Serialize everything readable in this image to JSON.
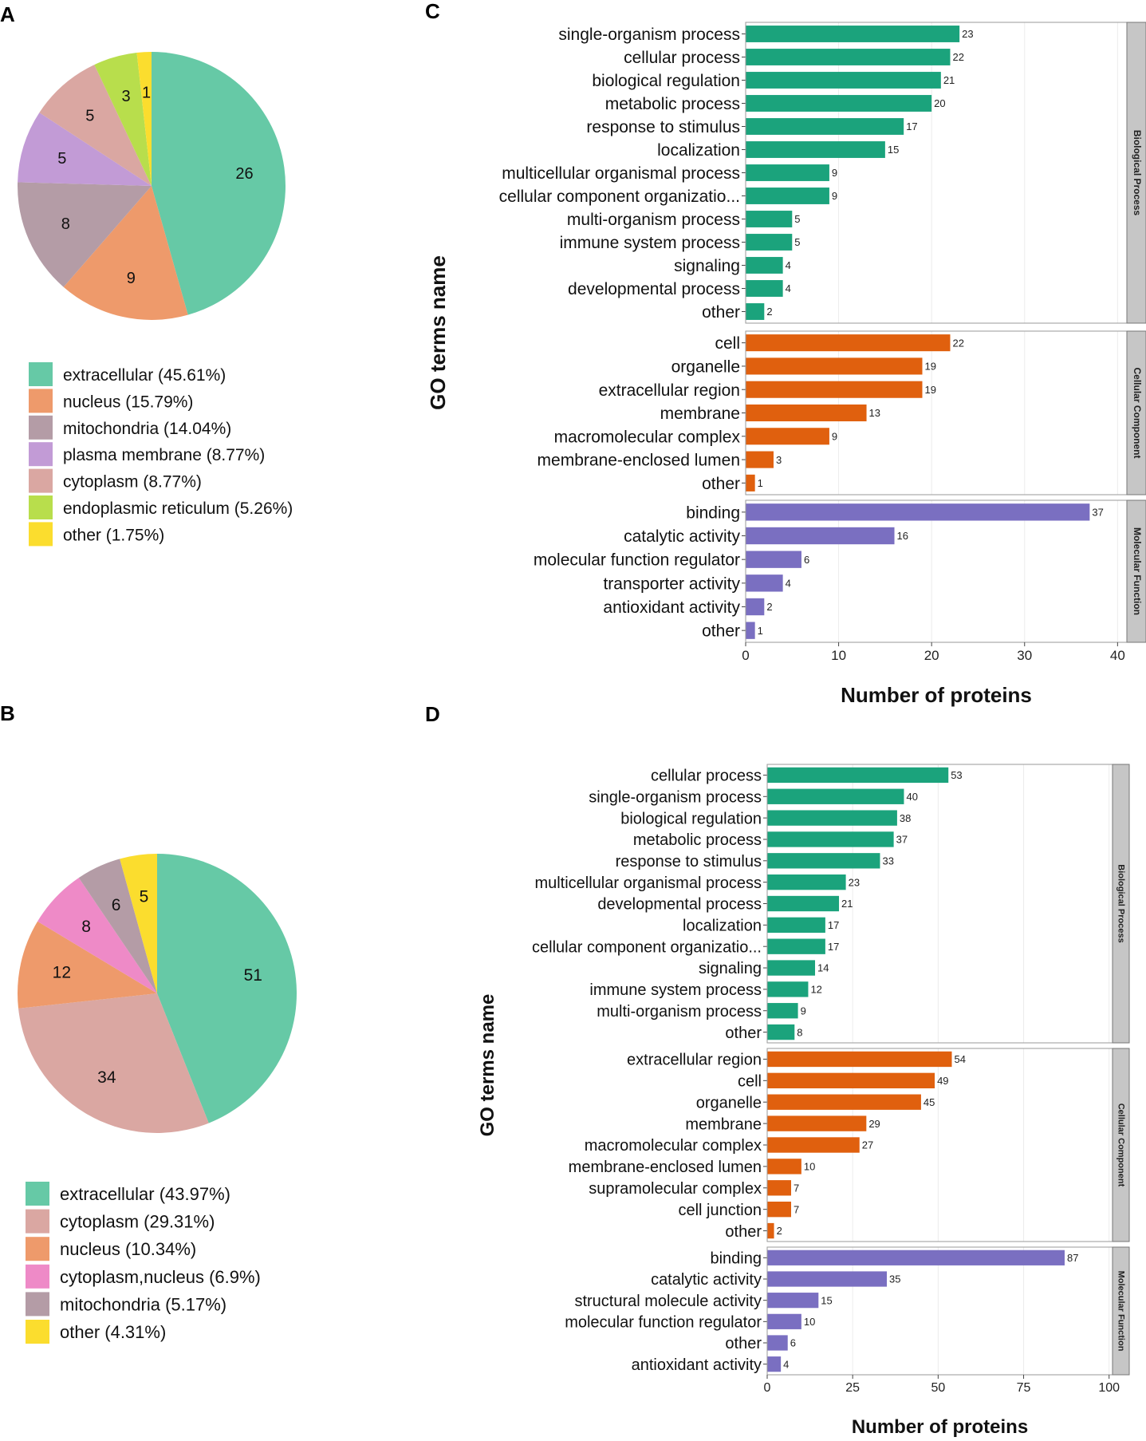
{
  "panel_letters": [
    "A",
    "B",
    "C",
    "D"
  ],
  "colors": {
    "bp": "#1ba37c",
    "cc": "#e0600e",
    "mf": "#7a6fc1",
    "strip": "#c6c6c6",
    "grid": "#ececec"
  },
  "chart_data": [
    {
      "id": "A",
      "type": "pie",
      "slices": [
        {
          "value": 26,
          "label": "extracellular (45.61%)",
          "color": "#66c9a6"
        },
        {
          "value": 9,
          "label": "nucleus (15.79%)",
          "color": "#ee9a6b"
        },
        {
          "value": 8,
          "label": "mitochondria (14.04%)",
          "color": "#b49ca6"
        },
        {
          "value": 5,
          "label": "plasma membrane (8.77%)",
          "color": "#c29bd6"
        },
        {
          "value": 5,
          "label": "cytoplasm (8.77%)",
          "color": "#daa7a2"
        },
        {
          "value": 3,
          "label": "endoplasmic reticulum (5.26%)",
          "color": "#b8de4c"
        },
        {
          "value": 1,
          "label": "other (1.75%)",
          "color": "#fbdd2e"
        }
      ]
    },
    {
      "id": "B",
      "type": "pie",
      "slices": [
        {
          "value": 51,
          "label": "extracellular (43.97%)",
          "color": "#66c9a6"
        },
        {
          "value": 34,
          "label": "cytoplasm (29.31%)",
          "color": "#daa7a2"
        },
        {
          "value": 12,
          "label": "nucleus (10.34%)",
          "color": "#ee9a6b"
        },
        {
          "value": 8,
          "label": "cytoplasm,nucleus (6.9%)",
          "color": "#ee8ac7"
        },
        {
          "value": 6,
          "label": "mitochondria (5.17%)",
          "color": "#b49ca6"
        },
        {
          "value": 5,
          "label": "other (4.31%)",
          "color": "#fbdd2e"
        }
      ]
    },
    {
      "id": "C",
      "type": "bar",
      "orientation": "horizontal",
      "xlabel": "Number of proteins",
      "ylabel": "GO terms name",
      "xlim": [
        0,
        41
      ],
      "xticks": [
        0,
        10,
        20,
        30,
        40
      ],
      "groups": [
        {
          "name": "Biological Process",
          "color_key": "bp",
          "categories": [
            "single-organism process",
            "cellular process",
            "biological regulation",
            "metabolic process",
            "response to stimulus",
            "localization",
            "multicellular organismal process",
            "cellular component organizatio...",
            "multi-organism process",
            "immune system process",
            "signaling",
            "developmental process",
            "other"
          ],
          "values": [
            23,
            22,
            21,
            20,
            17,
            15,
            9,
            9,
            5,
            5,
            4,
            4,
            2
          ]
        },
        {
          "name": "Cellular Component",
          "color_key": "cc",
          "categories": [
            "cell",
            "organelle",
            "extracellular region",
            "membrane",
            "macromolecular complex",
            "membrane-enclosed lumen",
            "other"
          ],
          "values": [
            22,
            19,
            19,
            13,
            9,
            3,
            1
          ]
        },
        {
          "name": "Molecular Function",
          "color_key": "mf",
          "categories": [
            "binding",
            "catalytic activity",
            "molecular function regulator",
            "transporter activity",
            "antioxidant activity",
            "other"
          ],
          "values": [
            37,
            16,
            6,
            4,
            2,
            1
          ]
        }
      ]
    },
    {
      "id": "D",
      "type": "bar",
      "orientation": "horizontal",
      "xlabel": "Number of proteins",
      "ylabel": "GO terms name",
      "xlim": [
        0,
        101
      ],
      "xticks": [
        0,
        25,
        50,
        75,
        100
      ],
      "groups": [
        {
          "name": "Biological Process",
          "color_key": "bp",
          "categories": [
            "cellular process",
            "single-organism process",
            "biological regulation",
            "metabolic process",
            "response to stimulus",
            "multicellular organismal process",
            "developmental process",
            "localization",
            "cellular component organizatio...",
            "signaling",
            "immune system process",
            "multi-organism process",
            "other"
          ],
          "values": [
            53,
            40,
            38,
            37,
            33,
            23,
            21,
            17,
            17,
            14,
            12,
            9,
            8
          ]
        },
        {
          "name": "Cellular Component",
          "color_key": "cc",
          "categories": [
            "extracellular region",
            "cell",
            "organelle",
            "membrane",
            "macromolecular complex",
            "membrane-enclosed lumen",
            "supramolecular complex",
            "cell junction",
            "other"
          ],
          "values": [
            54,
            49,
            45,
            29,
            27,
            10,
            7,
            7,
            2
          ]
        },
        {
          "name": "Molecular Function",
          "color_key": "mf",
          "categories": [
            "binding",
            "catalytic activity",
            "structural molecule activity",
            "molecular function regulator",
            "other",
            "antioxidant activity"
          ],
          "values": [
            87,
            35,
            15,
            10,
            6,
            4
          ]
        }
      ]
    }
  ]
}
